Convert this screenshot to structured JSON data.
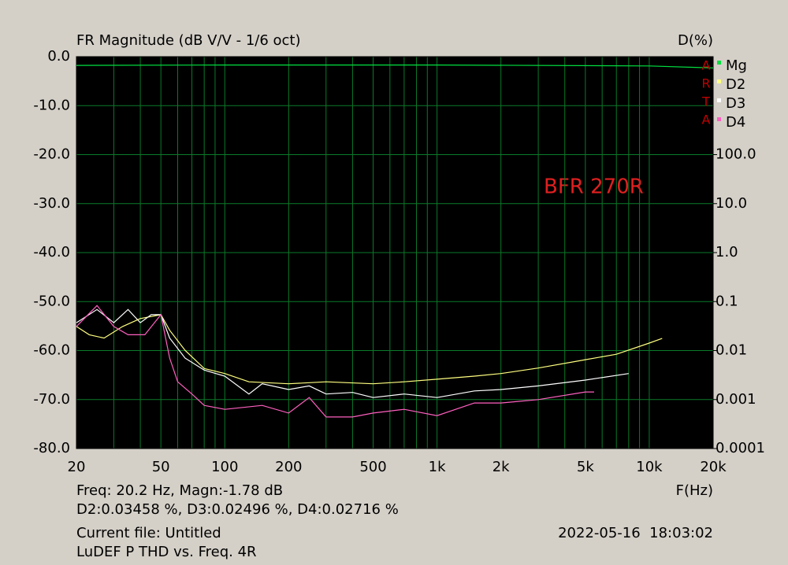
{
  "chart_data": {
    "type": "line",
    "title": "FR Magnitude (dB V/V - 1/6 oct)",
    "y2_label": "D(%)",
    "x_label": "F(Hz)",
    "xscale": "log",
    "y2scale": "log",
    "grid": true,
    "xlim": [
      20,
      20000
    ],
    "xticks": [
      20,
      50,
      100,
      200,
      500,
      {
        "value": 1000,
        "label": "1k"
      },
      {
        "value": 2000,
        "label": "2k"
      },
      {
        "value": 5000,
        "label": "5k"
      },
      {
        "value": 10000,
        "label": "10k"
      },
      {
        "value": 20000,
        "label": "20k"
      }
    ],
    "xgrid": [
      30,
      40,
      60,
      70,
      80,
      90,
      300,
      400,
      600,
      700,
      800,
      900,
      3000,
      4000,
      6000,
      7000,
      8000,
      9000
    ],
    "ylim": [
      -80,
      0
    ],
    "yticks": [
      {
        "value": 0,
        "label": "0.0"
      },
      {
        "value": -10,
        "label": "-10.0"
      },
      {
        "value": -20,
        "label": "-20.0"
      },
      {
        "value": -30,
        "label": "-30.0"
      },
      {
        "value": -40,
        "label": "-40.0"
      },
      {
        "value": -50,
        "label": "-50.0"
      },
      {
        "value": -60,
        "label": "-60.0"
      },
      {
        "value": -70,
        "label": "-70.0"
      },
      {
        "value": -80,
        "label": "-80.0"
      }
    ],
    "y2lim": [
      0.0001,
      10000
    ],
    "y2ticks": [
      {
        "value": 100,
        "label": "100.0"
      },
      {
        "value": 10,
        "label": "10.0"
      },
      {
        "value": 1,
        "label": "1.0"
      },
      0.1,
      0.01,
      0.001,
      0.0001
    ],
    "series": [
      {
        "name": "Mg",
        "color": "#00e040",
        "x": [
          20,
          100,
          1000,
          10000,
          20000
        ],
        "values": [
          -1.78,
          -1.7,
          -1.7,
          -1.9,
          -2.3
        ]
      },
      {
        "name": "D2",
        "color": "#ffff80",
        "axis": "y2",
        "x": [
          20,
          23,
          27,
          33,
          40,
          50,
          55,
          65,
          80,
          100,
          130,
          200,
          300,
          500,
          700,
          1000,
          1500,
          2000,
          3000,
          5000,
          7000,
          10000,
          11500
        ],
        "values": [
          0.031,
          0.021,
          0.018,
          0.031,
          0.045,
          0.054,
          0.026,
          0.0101,
          0.0043,
          0.0034,
          0.0023,
          0.0021,
          0.0023,
          0.0021,
          0.0023,
          0.0026,
          0.003,
          0.0034,
          0.0044,
          0.0065,
          0.0084,
          0.0142,
          0.0177
        ]
      },
      {
        "name": "D3",
        "color": "#ffffff",
        "axis": "y2",
        "x": [
          20,
          25,
          30,
          35,
          40,
          45,
          50,
          55,
          65,
          80,
          100,
          130,
          150,
          200,
          250,
          300,
          400,
          500,
          700,
          1000,
          1500,
          2000,
          3000,
          5000,
          8000
        ],
        "values": [
          0.037,
          0.069,
          0.037,
          0.069,
          0.037,
          0.054,
          0.054,
          0.018,
          0.007,
          0.004,
          0.003,
          0.0013,
          0.0021,
          0.0016,
          0.0019,
          0.0013,
          0.0014,
          0.0011,
          0.0013,
          0.0011,
          0.0015,
          0.0016,
          0.0019,
          0.0025,
          0.0034
        ]
      },
      {
        "name": "D4",
        "color": "#ff60c0",
        "axis": "y2",
        "x": [
          20,
          25,
          30,
          35,
          42,
          50,
          55,
          60,
          70,
          80,
          100,
          150,
          200,
          250,
          300,
          400,
          500,
          700,
          1000,
          1500,
          2000,
          3000,
          5000,
          5500
        ],
        "values": [
          0.031,
          0.083,
          0.031,
          0.021,
          0.021,
          0.054,
          0.007,
          0.0023,
          0.0013,
          0.00076,
          0.00063,
          0.00076,
          0.00053,
          0.0011,
          0.00044,
          0.00044,
          0.00053,
          0.00063,
          0.00047,
          0.00085,
          0.00085,
          0.001,
          0.00143,
          0.00143
        ]
      }
    ],
    "watermark": [
      "A",
      "R",
      "T",
      "A"
    ],
    "annotation": "BFR 270R",
    "readout": [
      "Freq: 20.2 Hz, Magn:-1.78 dB",
      "D2:0.03458 %, D3:0.02496 %, D4:0.02716 %"
    ],
    "file": "Current file: Untitled",
    "description": "LuDEF P THD vs. Freq. 4R",
    "timestamp": "2022-05-16  18:03:02"
  }
}
